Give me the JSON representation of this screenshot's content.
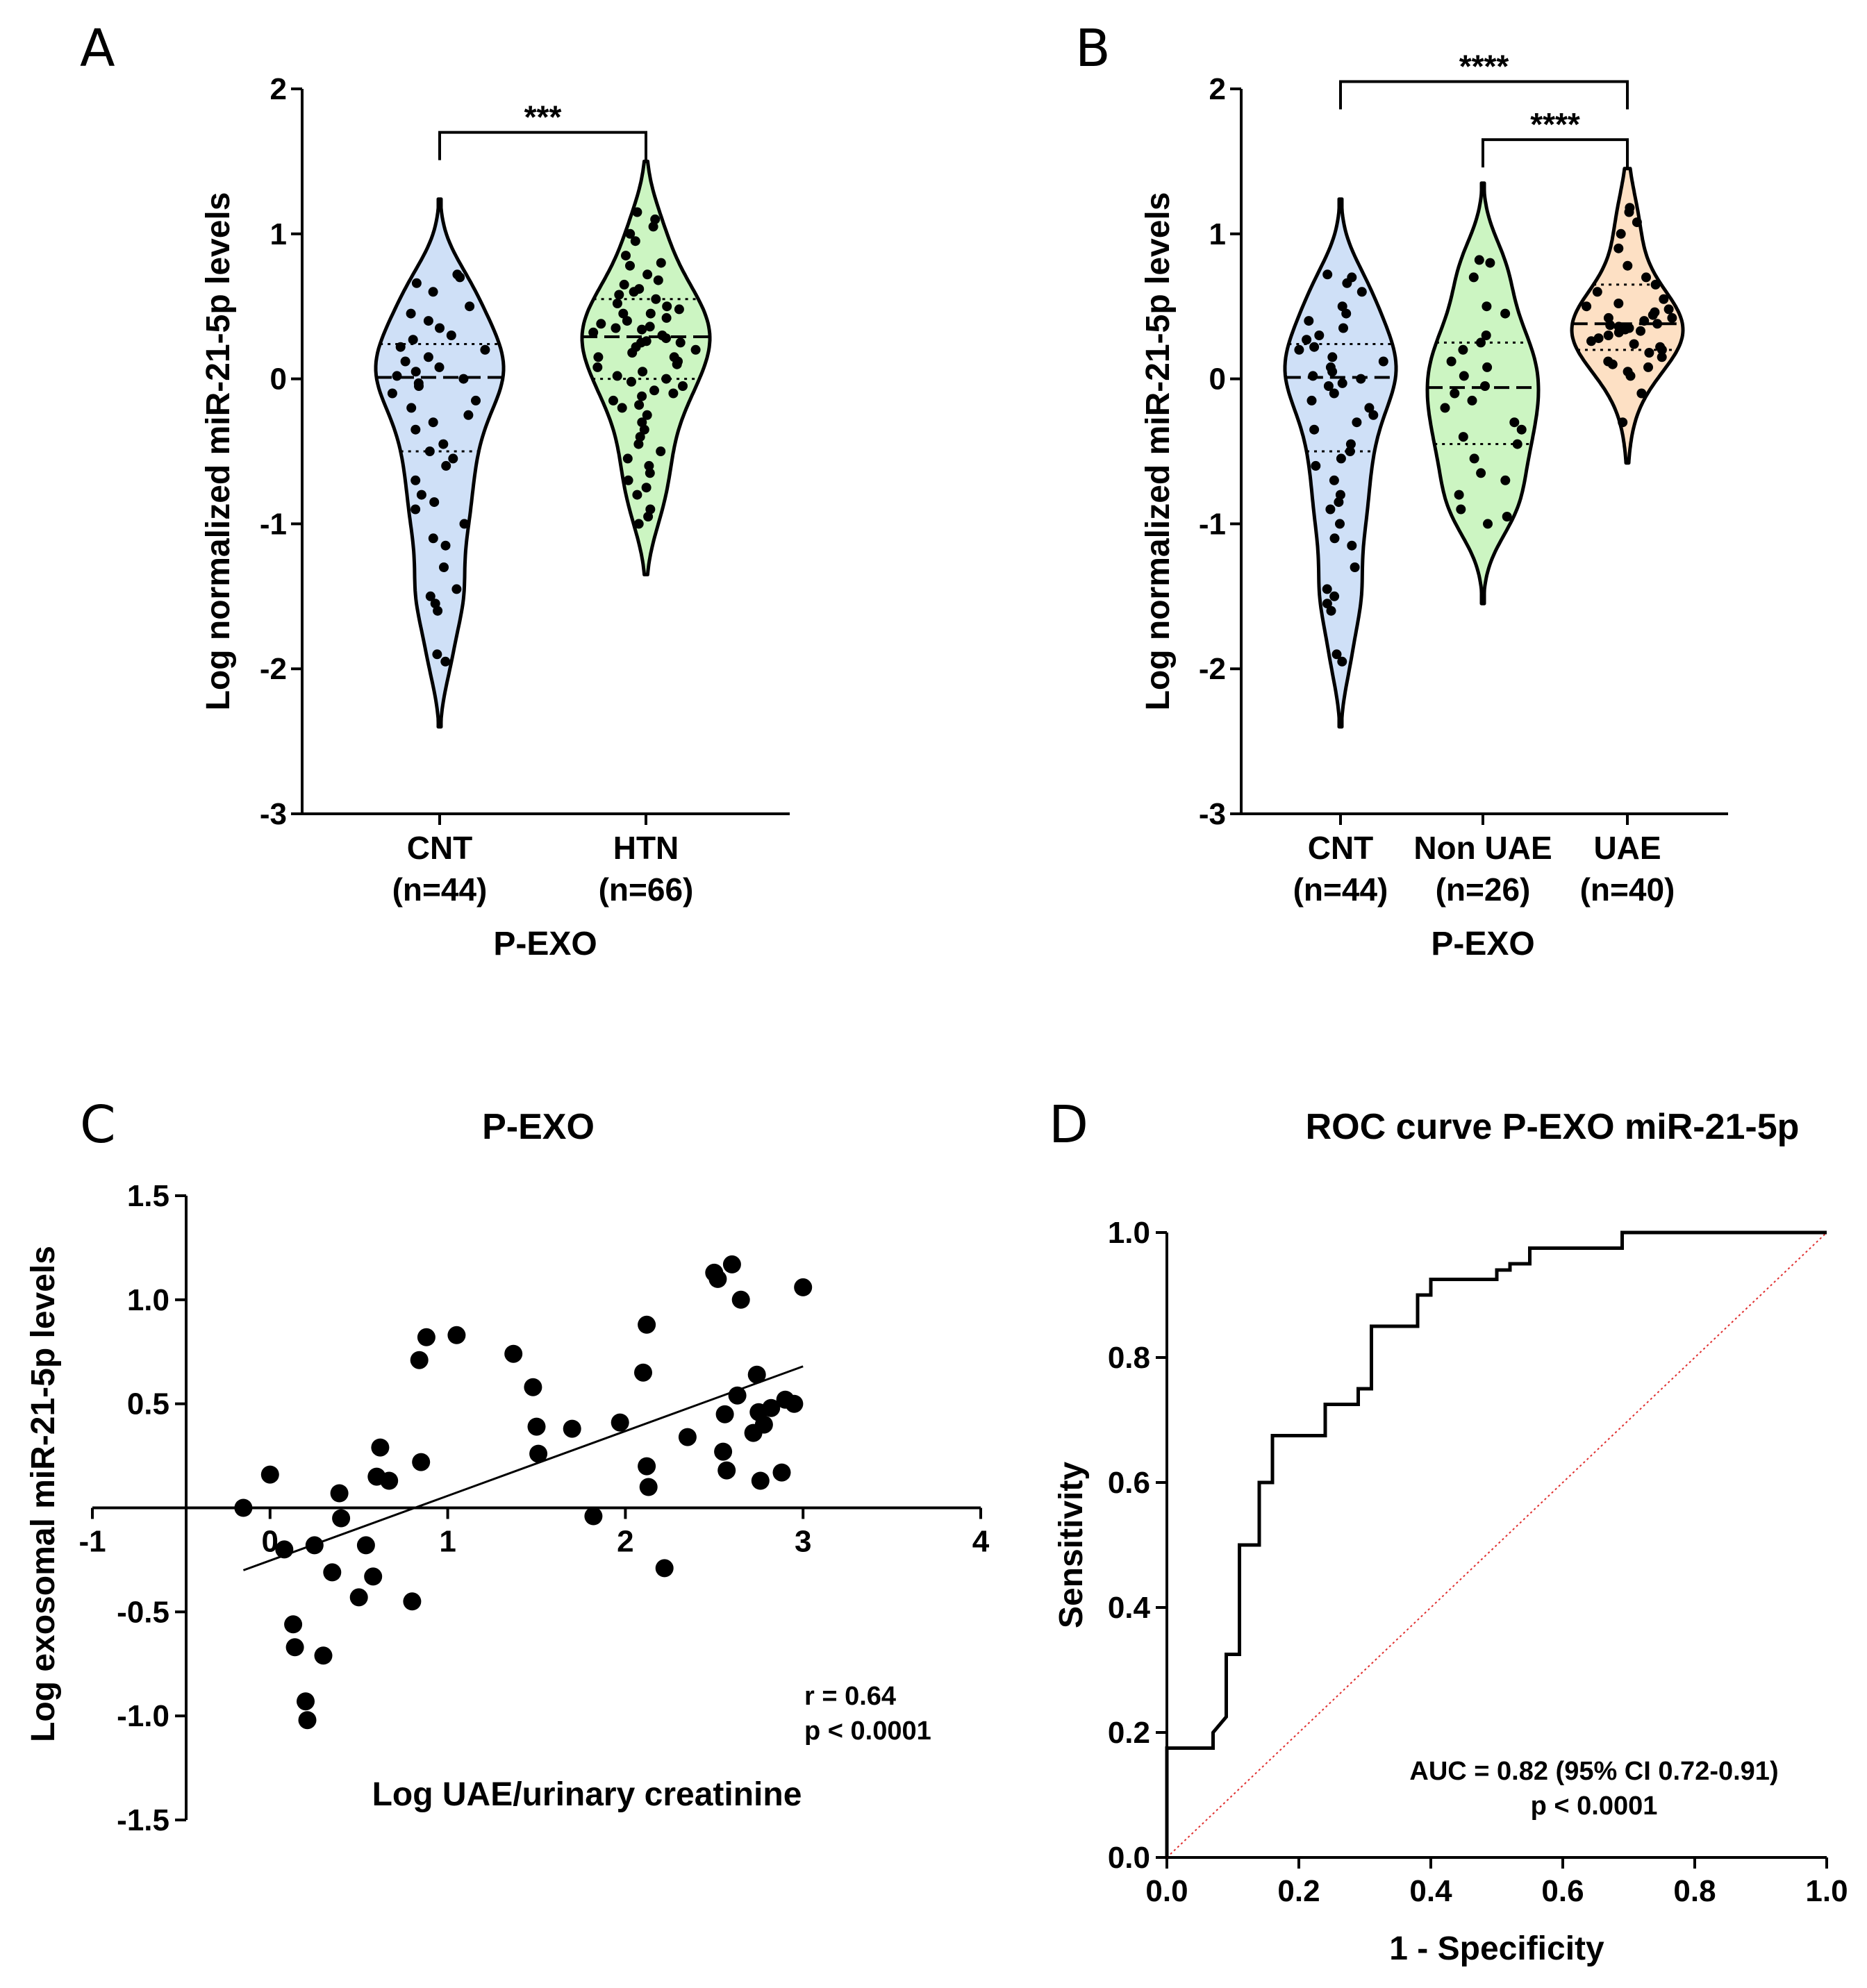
{
  "colors": {
    "cnt_fill": "#cfe0f7",
    "htn_fill": "#ccf5c2",
    "nonuae_fill": "#ccf5c2",
    "uae_fill": "#fde0c4",
    "diag_line": "#e03030",
    "ink": "#000000"
  },
  "chart_data": [
    {
      "panel": "A",
      "type": "violin",
      "ylabel": "Log normalized miR-21-5p levels",
      "xlabel": "P-EXO",
      "ylim": [
        -3,
        2
      ],
      "yticks": [
        "2",
        "1",
        "0",
        "-1",
        "-2",
        "-3"
      ],
      "groups": [
        {
          "name": "CNT",
          "n_label": "(n=44)",
          "fill_key": "cnt_fill",
          "median": 0.01,
          "q1": -0.5,
          "q3": 0.24,
          "min": -2.4,
          "max": 1.24,
          "points": [
            0.72,
            0.7,
            0.66,
            0.6,
            0.5,
            0.45,
            0.4,
            0.35,
            0.3,
            0.27,
            0.22,
            0.2,
            0.15,
            0.12,
            0.08,
            0.05,
            0.02,
            0.0,
            -0.03,
            -0.05,
            -0.1,
            -0.15,
            -0.2,
            -0.25,
            -0.3,
            -0.35,
            -0.45,
            -0.5,
            -0.55,
            -0.6,
            -0.7,
            -0.8,
            -0.85,
            -0.9,
            -1.0,
            -1.1,
            -1.15,
            -1.3,
            -1.45,
            -1.5,
            -1.55,
            -1.6,
            -1.9,
            -1.95
          ]
        },
        {
          "name": "HTN",
          "n_label": "(n=66)",
          "fill_key": "htn_fill",
          "median": 0.29,
          "q1": 0.0,
          "q3": 0.55,
          "min": -1.35,
          "max": 1.5,
          "points": [
            1.15,
            1.1,
            1.05,
            1.0,
            0.95,
            0.85,
            0.8,
            0.78,
            0.72,
            0.68,
            0.65,
            0.62,
            0.58,
            0.55,
            0.52,
            0.5,
            0.48,
            0.45,
            0.42,
            0.4,
            0.38,
            0.36,
            0.34,
            0.32,
            0.3,
            0.28,
            0.26,
            0.25,
            0.22,
            0.2,
            0.18,
            0.15,
            0.12,
            0.1,
            0.08,
            0.05,
            0.02,
            0.0,
            -0.02,
            -0.05,
            -0.08,
            -0.1,
            -0.12,
            -0.15,
            -0.18,
            -0.2,
            -0.25,
            -0.3,
            -0.35,
            -0.4,
            -0.45,
            -0.5,
            -0.55,
            -0.6,
            -0.65,
            -0.7,
            -0.75,
            -0.8,
            -0.9,
            -0.95,
            -1.0,
            0.6,
            0.35,
            0.15,
            0.45,
            0.25
          ]
        }
      ],
      "significance": [
        {
          "from": 0,
          "to": 1,
          "label": "***",
          "y": 1.7
        }
      ]
    },
    {
      "panel": "B",
      "type": "violin",
      "ylabel": "Log normalized miR-21-5p levels",
      "xlabel": "P-EXO",
      "ylim": [
        -3,
        2
      ],
      "yticks": [
        "2",
        "1",
        "0",
        "-1",
        "-2",
        "-3"
      ],
      "groups": [
        {
          "name": "CNT",
          "n_label": "(n=44)",
          "fill_key": "cnt_fill",
          "median": 0.01,
          "q1": -0.5,
          "q3": 0.24,
          "min": -2.4,
          "max": 1.24,
          "points": [
            0.72,
            0.7,
            0.66,
            0.6,
            0.5,
            0.45,
            0.4,
            0.35,
            0.3,
            0.27,
            0.22,
            0.2,
            0.15,
            0.12,
            0.08,
            0.05,
            0.02,
            0.0,
            -0.03,
            -0.05,
            -0.1,
            -0.15,
            -0.2,
            -0.25,
            -0.3,
            -0.35,
            -0.45,
            -0.5,
            -0.55,
            -0.6,
            -0.7,
            -0.8,
            -0.85,
            -0.9,
            -1.0,
            -1.1,
            -1.15,
            -1.3,
            -1.45,
            -1.5,
            -1.55,
            -1.6,
            -1.9,
            -1.95
          ]
        },
        {
          "name": "Non UAE",
          "n_label": "(n=26)",
          "fill_key": "nonuae_fill",
          "median": -0.06,
          "q1": -0.45,
          "q3": 0.25,
          "min": -1.55,
          "max": 1.35,
          "points": [
            0.82,
            0.8,
            0.7,
            0.5,
            0.45,
            0.3,
            0.25,
            0.2,
            0.12,
            0.08,
            0.02,
            -0.05,
            -0.1,
            -0.15,
            -0.2,
            -0.3,
            -0.35,
            -0.4,
            -0.45,
            -0.55,
            -0.65,
            -0.7,
            -0.8,
            -0.9,
            -0.95,
            -1.0
          ]
        },
        {
          "name": "UAE",
          "n_label": "(n=40)",
          "fill_key": "uae_fill",
          "median": 0.38,
          "q1": 0.2,
          "q3": 0.65,
          "min": -0.58,
          "max": 1.45,
          "points": [
            1.18,
            1.15,
            1.08,
            1.0,
            0.9,
            0.78,
            0.7,
            0.65,
            0.6,
            0.55,
            0.52,
            0.5,
            0.48,
            0.46,
            0.44,
            0.42,
            0.4,
            0.38,
            0.37,
            0.36,
            0.35,
            0.34,
            0.32,
            0.3,
            0.28,
            0.26,
            0.24,
            0.22,
            0.2,
            0.18,
            0.15,
            0.12,
            0.1,
            0.08,
            0.05,
            0.02,
            -0.1,
            -0.3,
            0.42,
            0.33
          ]
        }
      ],
      "significance": [
        {
          "from": 0,
          "to": 2,
          "label": "****",
          "y": 2.05
        },
        {
          "from": 1,
          "to": 2,
          "label": "****",
          "y": 1.65
        }
      ]
    },
    {
      "panel": "C",
      "type": "scatter",
      "title": "P-EXO",
      "xlabel": "Log UAE/urinary creatinine",
      "ylabel": "Log exosomal miR-21-5p levels",
      "xlim": [
        -1,
        4
      ],
      "ylim": [
        -1.5,
        1.5
      ],
      "xticks": [
        "-1",
        "0",
        "1",
        "2",
        "3",
        "4"
      ],
      "yticks": [
        "1.5",
        "1.0",
        "0.5",
        "-0.5",
        "-1.0",
        "-1.5"
      ],
      "annotation": [
        "r = 0.64",
        "p < 0.0001"
      ],
      "regression": {
        "x": [
          -0.15,
          3.0
        ],
        "y": [
          -0.3,
          0.68
        ]
      },
      "points": [
        [
          -0.15,
          0.0
        ],
        [
          0.0,
          0.16
        ],
        [
          0.08,
          -0.2
        ],
        [
          0.13,
          -0.56
        ],
        [
          0.14,
          -0.67
        ],
        [
          0.2,
          -0.93
        ],
        [
          0.21,
          -1.02
        ],
        [
          0.25,
          -0.18
        ],
        [
          0.3,
          -0.71
        ],
        [
          0.35,
          -0.31
        ],
        [
          0.39,
          0.07
        ],
        [
          0.4,
          -0.05
        ],
        [
          0.5,
          -0.43
        ],
        [
          0.54,
          -0.18
        ],
        [
          0.58,
          -0.33
        ],
        [
          0.6,
          0.15
        ],
        [
          0.62,
          0.29
        ],
        [
          0.67,
          0.13
        ],
        [
          0.8,
          -0.45
        ],
        [
          0.84,
          0.71
        ],
        [
          0.85,
          0.22
        ],
        [
          0.88,
          0.82
        ],
        [
          1.05,
          0.83
        ],
        [
          1.37,
          0.74
        ],
        [
          1.48,
          0.58
        ],
        [
          1.5,
          0.39
        ],
        [
          1.51,
          0.26
        ],
        [
          1.7,
          0.38
        ],
        [
          1.82,
          -0.04
        ],
        [
          1.97,
          0.41
        ],
        [
          2.1,
          0.65
        ],
        [
          2.12,
          0.88
        ],
        [
          2.12,
          0.2
        ],
        [
          2.13,
          0.1
        ],
        [
          2.22,
          -0.29
        ],
        [
          2.35,
          0.34
        ],
        [
          2.5,
          1.13
        ],
        [
          2.52,
          1.1
        ],
        [
          2.55,
          0.27
        ],
        [
          2.56,
          0.45
        ],
        [
          2.57,
          0.18
        ],
        [
          2.6,
          1.17
        ],
        [
          2.63,
          0.54
        ],
        [
          2.65,
          1.0
        ],
        [
          2.72,
          0.36
        ],
        [
          2.74,
          0.64
        ],
        [
          2.75,
          0.46
        ],
        [
          2.76,
          0.13
        ],
        [
          2.78,
          0.4
        ],
        [
          2.82,
          0.48
        ],
        [
          2.88,
          0.17
        ],
        [
          2.9,
          0.52
        ],
        [
          2.95,
          0.5
        ],
        [
          3.0,
          1.06
        ]
      ]
    },
    {
      "panel": "D",
      "type": "line",
      "title": "ROC curve P-EXO miR-21-5p",
      "xlabel": "1 - Specificity",
      "ylabel": "Sensitivity",
      "xlim": [
        0.0,
        1.0
      ],
      "ylim": [
        0.0,
        1.0
      ],
      "xticks": [
        "0.0",
        "0.2",
        "0.4",
        "0.6",
        "0.8",
        "1.0"
      ],
      "yticks": [
        "1.0",
        "0.8",
        "0.6",
        "0.4",
        "0.2",
        "0.0"
      ],
      "annotation": [
        "AUC = 0.82 (95% CI 0.72-0.91)",
        "p < 0.0001"
      ],
      "series": [
        {
          "name": "ROC",
          "x": [
            0,
            0,
            0.07,
            0.07,
            0.09,
            0.09,
            0.11,
            0.11,
            0.12,
            0.12,
            0.14,
            0.14,
            0.16,
            0.16,
            0.24,
            0.24,
            0.29,
            0.29,
            0.31,
            0.31,
            0.38,
            0.38,
            0.4,
            0.4,
            0.5,
            0.5,
            0.52,
            0.52,
            0.55,
            0.55,
            0.69,
            0.69,
            1.0
          ],
          "y": [
            0,
            0.175,
            0.175,
            0.2,
            0.225,
            0.325,
            0.325,
            0.5,
            0.5,
            0.5,
            0.5,
            0.6,
            0.6,
            0.675,
            0.675,
            0.725,
            0.725,
            0.75,
            0.75,
            0.85,
            0.85,
            0.9,
            0.9,
            0.925,
            0.925,
            0.94,
            0.94,
            0.95,
            0.95,
            0.975,
            0.975,
            1.0,
            1.0
          ]
        },
        {
          "name": "Reference",
          "x": [
            0,
            1
          ],
          "y": [
            0,
            1
          ]
        }
      ]
    }
  ]
}
